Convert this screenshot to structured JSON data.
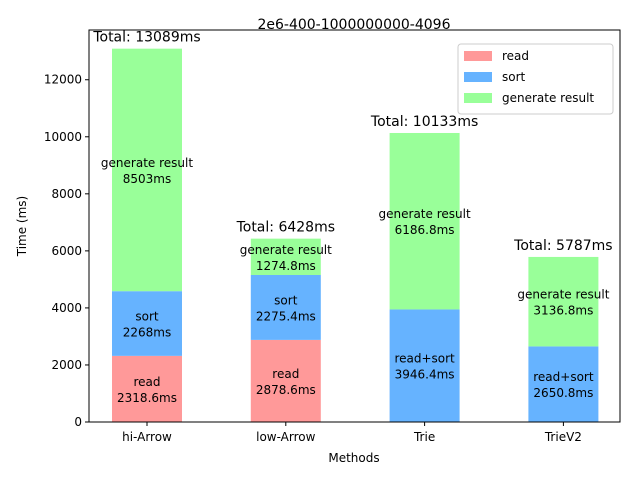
{
  "chart_data": {
    "type": "bar",
    "stacked": true,
    "title": "2e6-400-1000000000-4096",
    "xlabel": "Methods",
    "ylabel": "Time (ms)",
    "ylim": [
      0,
      13744
    ],
    "yticks": [
      0,
      2000,
      4000,
      6000,
      8000,
      10000,
      12000
    ],
    "categories": [
      "hi-Arrow",
      "low-Arrow",
      "Trie",
      "TrieV2"
    ],
    "series": [
      {
        "name": "read",
        "color": "#ff9999",
        "values": [
          2318.6,
          2878.6,
          0,
          0
        ]
      },
      {
        "name": "sort",
        "color": "#66b3ff",
        "values": [
          2268,
          2275.4,
          3946.4,
          2650.8
        ]
      },
      {
        "name": "generate result",
        "color": "#99ff99",
        "values": [
          8503,
          1274.8,
          6186.8,
          3136.8
        ]
      }
    ],
    "segment_labels": [
      [
        {
          "line1": "read",
          "line2": "2318.6ms"
        },
        {
          "line1": "sort",
          "line2": "2268ms"
        },
        {
          "line1": "generate result",
          "line2": "8503ms"
        }
      ],
      [
        {
          "line1": "read",
          "line2": "2878.6ms"
        },
        {
          "line1": "sort",
          "line2": "2275.4ms"
        },
        {
          "line1": "generate result",
          "line2": "1274.8ms"
        }
      ],
      [
        null,
        {
          "line1": "read+sort",
          "line2": "3946.4ms"
        },
        {
          "line1": "generate result",
          "line2": "6186.8ms"
        }
      ],
      [
        null,
        {
          "line1": "read+sort",
          "line2": "2650.8ms"
        },
        {
          "line1": "generate result",
          "line2": "3136.8ms"
        }
      ]
    ],
    "totals": [
      "Total: 13089ms",
      "Total: 6428ms",
      "Total: 10133ms",
      "Total: 5787ms"
    ],
    "legend": {
      "position": "top-right",
      "entries": [
        "read",
        "sort",
        "generate result"
      ]
    },
    "grid": false
  }
}
